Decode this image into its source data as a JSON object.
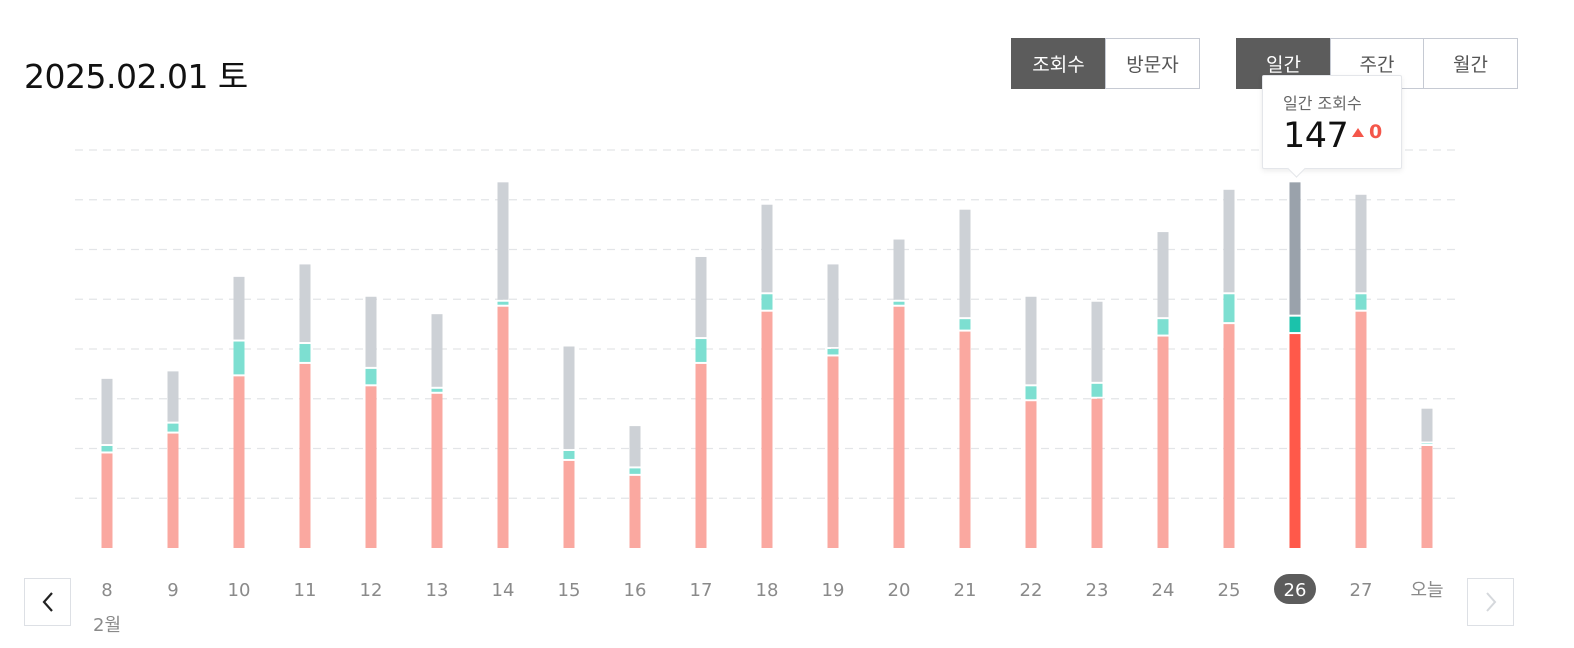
{
  "header": {
    "date_title": "2025.02.01 토"
  },
  "metric_tabs": [
    {
      "label": "조회수",
      "active": true
    },
    {
      "label": "방문자",
      "active": false
    }
  ],
  "period_tabs": [
    {
      "label": "일간",
      "active": true
    },
    {
      "label": "주간",
      "active": false
    },
    {
      "label": "월간",
      "active": false
    }
  ],
  "tooltip": {
    "label": "일간 조회수",
    "value": "147",
    "change": "0"
  },
  "month_label": "2월",
  "colors": {
    "base": "#faa8a0",
    "middle": "#7ddfd1",
    "top": "#cdd1d6",
    "selected_base": "#ff594a",
    "selected_middle": "#1bc2ab",
    "selected_top": "#9aa2ab",
    "grid": "#e3e5e8",
    "tick_text": "#8a8a8a",
    "selected_badge": "#5c5c5c"
  },
  "chart_data": {
    "type": "bar",
    "stacked": true,
    "categories": [
      "8",
      "9",
      "10",
      "11",
      "12",
      "13",
      "14",
      "15",
      "16",
      "17",
      "18",
      "19",
      "20",
      "21",
      "22",
      "23",
      "24",
      "25",
      "26",
      "27",
      "오늘"
    ],
    "selected_index": 18,
    "series": [
      {
        "values": [
          38,
          46,
          69,
          74,
          65,
          62,
          97,
          35,
          29,
          74,
          95,
          77,
          97,
          87,
          59,
          60,
          85,
          90,
          86,
          95,
          41
        ]
      },
      {
        "values": [
          3,
          4,
          14,
          8,
          7,
          2,
          2,
          4,
          3,
          10,
          7,
          3,
          2,
          5,
          6,
          6,
          7,
          12,
          7,
          7,
          1
        ]
      },
      {
        "values": [
          27,
          21,
          26,
          32,
          29,
          30,
          48,
          42,
          17,
          33,
          36,
          34,
          25,
          44,
          36,
          33,
          35,
          42,
          54,
          40,
          14
        ]
      }
    ],
    "ylim": [
      0,
      160
    ],
    "grid": true
  }
}
